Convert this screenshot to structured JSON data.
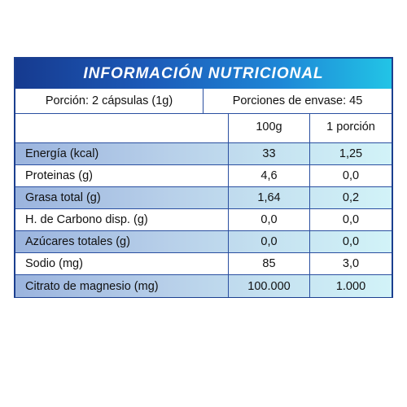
{
  "title": "INFORMACIÓN NUTRICIONAL",
  "portion": {
    "size": "Porción: 2 cápsulas (1g)",
    "per_container": "Porciones de envase: 45"
  },
  "columns": [
    "",
    "100g",
    "1 porción"
  ],
  "rows": [
    {
      "name": "Energía (kcal)",
      "per100": "33",
      "perPortion": "1,25"
    },
    {
      "name": "Proteinas (g)",
      "per100": "4,6",
      "perPortion": "0,0"
    },
    {
      "name": "Grasa total (g)",
      "per100": "1,64",
      "perPortion": "0,2"
    },
    {
      "name": "H. de Carbono disp. (g)",
      "per100": "0,0",
      "perPortion": "0,0"
    },
    {
      "name": "Azúcares totales (g)",
      "per100": "0,0",
      "perPortion": "0,0"
    },
    {
      "name": "Sodio (mg)",
      "per100": "85",
      "perPortion": "3,0"
    },
    {
      "name": "Citrato de magnesio (mg)",
      "per100": "100.000",
      "perPortion": "1.000"
    }
  ],
  "colors": {
    "border": "#1b3f8f",
    "title_gradient_start": "#163a8f",
    "title_gradient_end": "#22c4e6",
    "shaded_row_start": "#9bb4de",
    "shaded_row_end": "#d2f3f8"
  }
}
